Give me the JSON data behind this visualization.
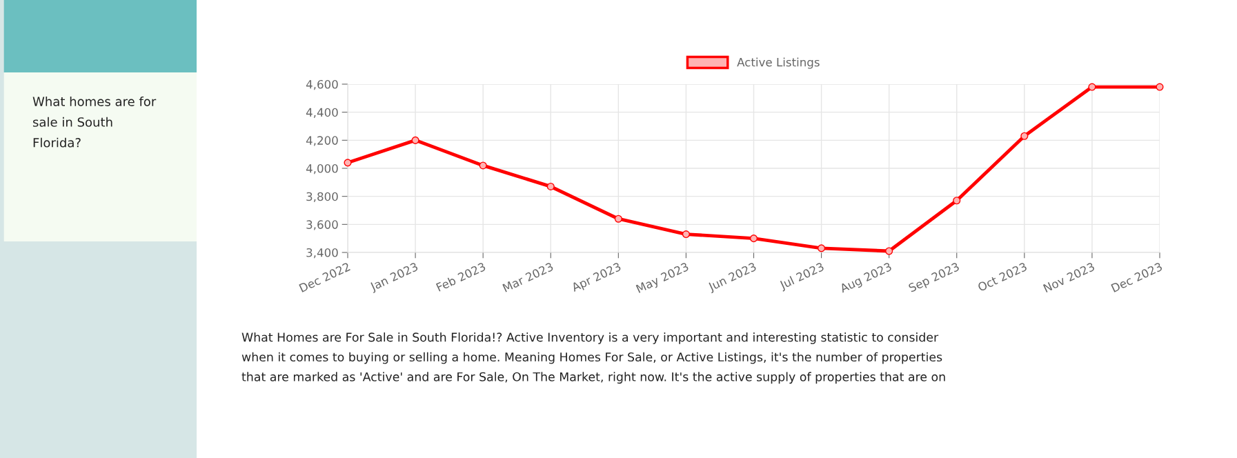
{
  "chart_data": {
    "type": "line",
    "categories": [
      "Dec 2022",
      "Jan 2023",
      "Feb 2023",
      "Mar 2023",
      "Apr 2023",
      "May 2023",
      "Jun 2023",
      "Jul 2023",
      "Aug 2023",
      "Sep 2023",
      "Oct 2023",
      "Nov 2023",
      "Dec 2023"
    ],
    "series": [
      {
        "name": "Active Listings",
        "color": "#ff0000",
        "values": [
          4040,
          4200,
          4020,
          3870,
          3640,
          3530,
          3500,
          3430,
          3410,
          3770,
          4230,
          4580,
          4580
        ]
      }
    ],
    "ylim": [
      3400,
      4600
    ],
    "yticks": [
      {
        "value": 3400,
        "label": "3,400"
      },
      {
        "value": 3600,
        "label": "3,600"
      },
      {
        "value": 3800,
        "label": "3,800"
      },
      {
        "value": 4000,
        "label": "4,000"
      },
      {
        "value": 4200,
        "label": "4,200"
      },
      {
        "value": 4400,
        "label": "4,400"
      },
      {
        "value": 4600,
        "label": "4,600"
      }
    ],
    "grid": true,
    "legend": "top",
    "marker": "circle",
    "line_style": "solid",
    "annotations": [
      "What homes are for\nsale in South\nFlorida?",
      "What Homes are For Sale in South Florida!? Active Inventory is a very important and interesting statistic to consider\nwhen it comes to buying or selling a home. Meaning Homes For Sale, or Active Listings, it's the number of properties\nthat are marked as 'Active' and are For Sale, On The Market, right now. It's the active supply of properties that are on"
    ]
  }
}
